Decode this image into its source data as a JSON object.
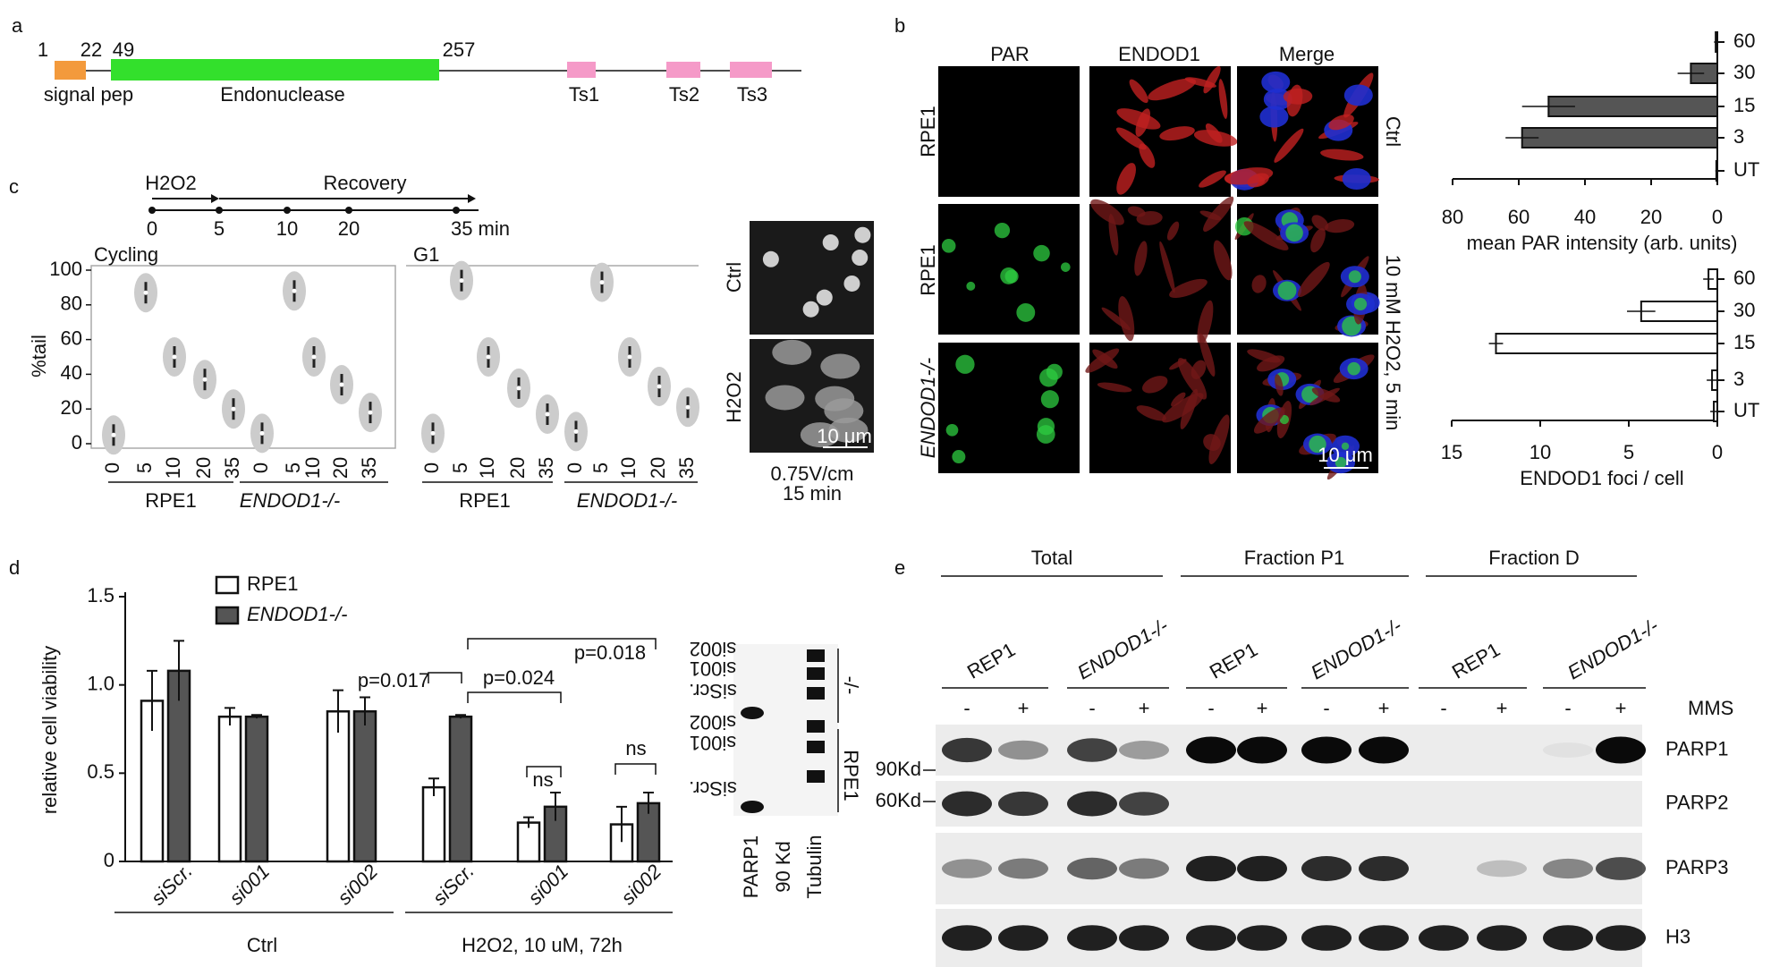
{
  "panel_labels": [
    "a",
    "b",
    "c",
    "d",
    "e"
  ],
  "panel_a": {
    "positions": [
      "1",
      "22",
      "49",
      "257"
    ],
    "domains": [
      "signal pep",
      "Endonuclease",
      "Ts1",
      "Ts2",
      "Ts3"
    ]
  },
  "panel_b": {
    "columns": [
      "PAR",
      "ENDOD1",
      "Merge"
    ],
    "rows": [
      "RPE1",
      "RPE1",
      "ENDOD1-/-"
    ],
    "conditions": [
      "Ctrl",
      "10 mM H2O2, 5 min"
    ],
    "scale_bar": "10 μm"
  },
  "panel_c": {
    "timeline": {
      "labels": [
        "H2O2",
        "Recovery"
      ],
      "ticks": [
        "0",
        "5",
        "10",
        "20",
        "35 min"
      ]
    },
    "comet": {
      "conditions": [
        "Ctrl",
        "H2O2"
      ],
      "scale_bar": "10 μm",
      "caption": [
        "0.75V/cm",
        "15 min"
      ]
    }
  },
  "panel_d_blot": {
    "lanes": [
      "si002",
      "si001",
      "siScr.",
      "si002",
      "si001",
      "siScr."
    ],
    "labels": [
      "PARP1",
      "90 Kd",
      "Tubulin"
    ],
    "groups": [
      "-/-",
      "RPE1"
    ]
  },
  "panel_e": {
    "headers": [
      "Total",
      "Fraction P1",
      "Fraction D"
    ],
    "lines": [
      "REP1",
      "ENDOD1-/-",
      "REP1",
      "ENDOD1-/-",
      "REP1",
      "ENDOD1-/-"
    ],
    "treatment": "MMS",
    "signs": [
      "-",
      "+"
    ],
    "markers": [
      "90Kd",
      "60Kd"
    ],
    "proteins": [
      "PARP1",
      "PARP2",
      "PARP3",
      "H3"
    ]
  },
  "chart_data": [
    {
      "type": "hbar",
      "categories": [
        "60",
        "30",
        "15",
        "3",
        "UT"
      ],
      "values": [
        0.5,
        8,
        51,
        59,
        0.3
      ],
      "errors": [
        0.5,
        4,
        8,
        5,
        0.3
      ],
      "color": "#555555",
      "xlim": [
        80,
        0
      ],
      "xticks": [
        80,
        60,
        40,
        20,
        0
      ],
      "xlabel": "mean PAR intensity (arb. units)"
    },
    {
      "type": "hbar",
      "categories": [
        "60",
        "30",
        "15",
        "3",
        "UT"
      ],
      "values": [
        0.5,
        4.3,
        12.5,
        0.3,
        0.2
      ],
      "errors": [
        0.3,
        0.8,
        0.4,
        0.3,
        0.2
      ],
      "color": "#ffffff",
      "xlim": [
        15,
        0
      ],
      "xticks": [
        15,
        10,
        5,
        0
      ],
      "xlabel": "ENDOD1 foci / cell"
    },
    {
      "type": "violin",
      "title": "Cycling",
      "ylabel": "%tail",
      "categories": [
        "0",
        "5",
        "10",
        "20",
        "35",
        "0",
        "5",
        "10",
        "20",
        "35"
      ],
      "values": [
        5,
        87,
        50,
        37,
        20,
        6,
        88,
        50,
        34,
        18
      ],
      "groups": [
        "RPE1",
        "ENDOD1-/-"
      ],
      "color": "#cccccc",
      "ylim": [
        0,
        100
      ],
      "yticks": [
        0,
        20,
        40,
        60,
        80,
        100
      ]
    },
    {
      "type": "violin",
      "title": "G1",
      "categories": [
        "0",
        "5",
        "10",
        "20",
        "35",
        "0",
        "5",
        "10",
        "20",
        "35"
      ],
      "values": [
        6,
        94,
        50,
        32,
        17,
        7,
        93,
        50,
        33,
        21
      ],
      "groups": [
        "RPE1",
        "ENDOD1-/-"
      ],
      "color": "#cccccc",
      "ylim": [
        0,
        100
      ]
    },
    {
      "type": "grouped_bar",
      "ylabel": "relative cell viability",
      "categories": [
        "siScr.",
        "si001",
        "si002",
        "siScr.",
        "si001",
        "si002"
      ],
      "groups": [
        "Ctrl",
        "H2O2, 10 uM, 72h"
      ],
      "series": [
        {
          "name": "RPE1",
          "color": "#ffffff",
          "values": [
            0.91,
            0.82,
            0.85,
            0.42,
            0.22,
            0.21
          ],
          "errors": [
            0.17,
            0.05,
            0.12,
            0.05,
            0.03,
            0.1
          ]
        },
        {
          "name": "ENDOD1-/-",
          "color": "#555555",
          "values": [
            1.08,
            0.82,
            0.85,
            0.82,
            0.31,
            0.33
          ],
          "errors": [
            0.17,
            0.01,
            0.08,
            0.01,
            0.08,
            0.06
          ]
        }
      ],
      "ylim": [
        0,
        1.5
      ],
      "yticks": [
        0,
        0.5,
        {
          "value": 1,
          "label": "1.0"
        },
        1.5
      ],
      "annotations": [
        "p=0.017",
        "p=0.024",
        "p=0.018",
        "ns",
        "ns"
      ]
    }
  ]
}
